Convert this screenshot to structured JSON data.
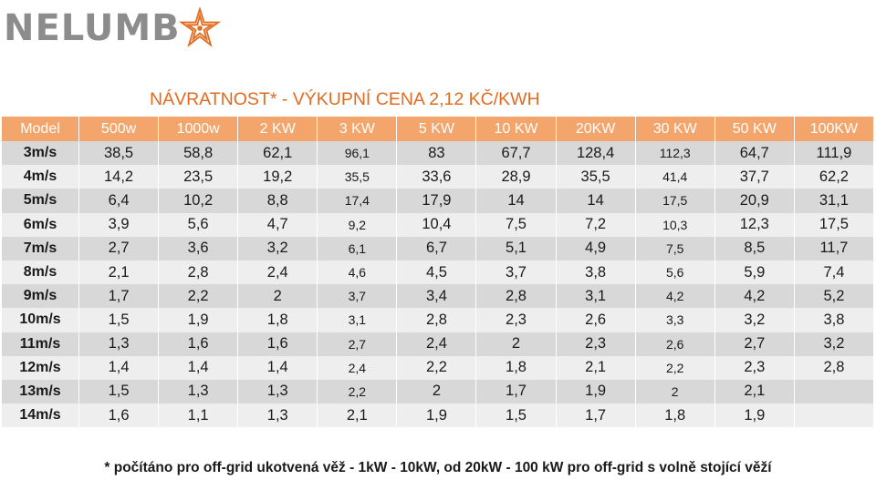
{
  "logo": {
    "text": "NELUMB",
    "icon": "orange-star-flower-logo"
  },
  "title": "NÁVRATNOST* - VÝKUPNÍ CENA 2,12 KČ/KWH",
  "table": {
    "headers": [
      "Model",
      "500w",
      "1000w",
      "2 KW",
      "3 KW",
      "5 KW",
      "10 KW",
      "20KW",
      "30 KW",
      "50 KW",
      "100KW"
    ],
    "rows": [
      [
        "3m/s",
        "38,5",
        "58,8",
        "62,1",
        "96,1",
        "83",
        "67,7",
        "128,4",
        "112,3",
        "64,7",
        "111,9"
      ],
      [
        "4m/s",
        "14,2",
        "23,5",
        "19,2",
        "35,5",
        "33,6",
        "28,9",
        "35,5",
        "41,4",
        "37,7",
        "62,2"
      ],
      [
        "5m/s",
        "6,4",
        "10,2",
        "8,8",
        "17,4",
        "17,9",
        "14",
        "14",
        "17,5",
        "20,9",
        "31,1"
      ],
      [
        "6m/s",
        "3,9",
        "5,6",
        "4,7",
        "9,2",
        "10,4",
        "7,5",
        "7,2",
        "10,3",
        "12,3",
        "17,5"
      ],
      [
        "7m/s",
        "2,7",
        "3,6",
        "3,2",
        "6,1",
        "6,7",
        "5,1",
        "4,9",
        "7,5",
        "8,5",
        "11,7"
      ],
      [
        "8m/s",
        "2,1",
        "2,8",
        "2,4",
        "4,6",
        "4,5",
        "3,7",
        "3,8",
        "5,6",
        "5,9",
        "7,4"
      ],
      [
        "9m/s",
        "1,7",
        "2,2",
        "2",
        "3,7",
        "3,4",
        "2,8",
        "3,1",
        "4,2",
        "4,2",
        "5,2"
      ],
      [
        "10m/s",
        "1,5",
        "1,9",
        "1,8",
        "3,1",
        "2,8",
        "2,3",
        "2,6",
        "3,3",
        "3,2",
        "3,8"
      ],
      [
        "11m/s",
        "1,3",
        "1,6",
        "1,6",
        "2,7",
        "2,4",
        "2",
        "2,3",
        "2,6",
        "2,7",
        "3,2"
      ],
      [
        "12m/s",
        "1,4",
        "1,4",
        "1,4",
        "2,4",
        "2,2",
        "1,8",
        "2,1",
        "2,2",
        "2,3",
        "2,8"
      ],
      [
        "13m/s",
        "1,5",
        "1,3",
        "1,3",
        "2,2",
        "2",
        "1,7",
        "1,9",
        "2",
        "2,1",
        ""
      ],
      [
        "14m/s",
        "1,6",
        "1,1",
        "1,3",
        "2,1",
        "1,9",
        "1,5",
        "1,7",
        "1,8",
        "1,9",
        ""
      ]
    ]
  },
  "footnote": "* počítáno pro off-grid ukotvená věž - 1kW - 10kW, od 20kW - 100 kW pro off-grid s volně stojící věží",
  "colors": {
    "accent": "#e26b1f",
    "header_bg": "#f4a56c",
    "logo_gray": "#8c8c8c"
  }
}
